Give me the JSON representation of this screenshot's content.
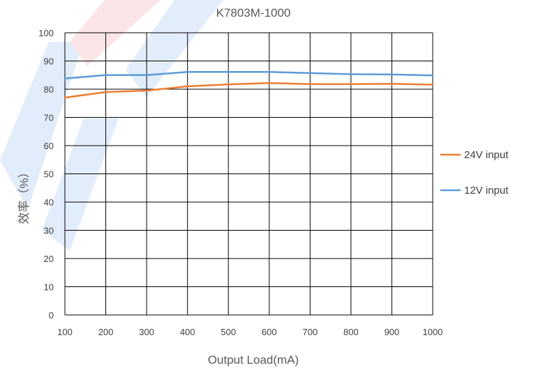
{
  "chart_data": {
    "type": "line",
    "title": "K7803M-1000",
    "xlabel": "Output Load(mA)",
    "ylabel": "效率（%）",
    "x": [
      100,
      200,
      300,
      400,
      500,
      600,
      700,
      800,
      900,
      1000
    ],
    "xlim": [
      100,
      1000
    ],
    "ylim": [
      0,
      100
    ],
    "x_ticks": [
      100,
      200,
      300,
      400,
      500,
      600,
      700,
      800,
      900,
      1000
    ],
    "y_ticks": [
      0,
      10,
      20,
      30,
      40,
      50,
      60,
      70,
      80,
      90,
      100
    ],
    "grid": true,
    "legend_position": "right",
    "series": [
      {
        "name": "24V input",
        "color": "#ED7D31",
        "values": [
          77,
          79,
          79.5,
          81,
          81.7,
          82.2,
          81.8,
          81.8,
          81.9,
          81.6
        ]
      },
      {
        "name": "12V input",
        "color": "#5B9BD5",
        "values": [
          83.8,
          85,
          85,
          86.1,
          86.1,
          86.1,
          85.7,
          85.3,
          85.2,
          84.9
        ]
      }
    ]
  },
  "watermark": {
    "colors": [
      "#1E6FE0",
      "#E8323C"
    ]
  }
}
